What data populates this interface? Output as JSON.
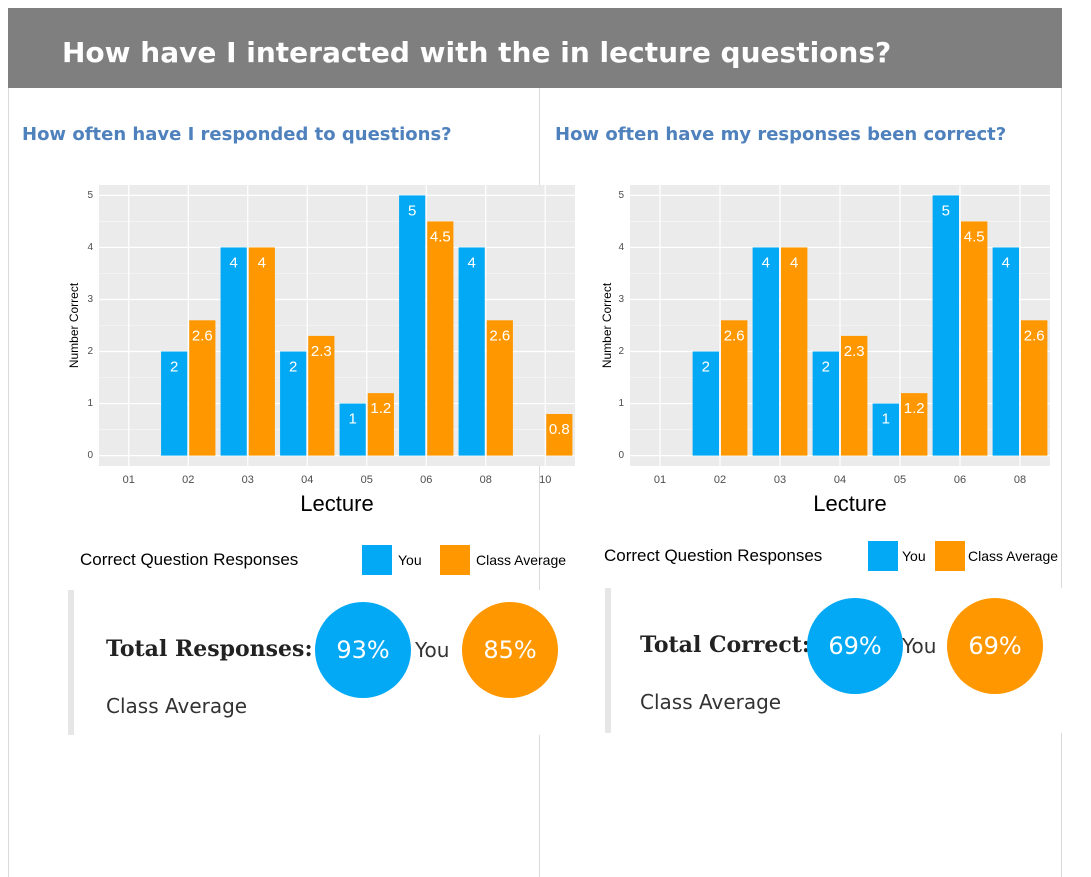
{
  "header": {
    "title": "How have I interacted with the in lecture questions?"
  },
  "panels": [
    {
      "heading": "How often have I responded to questions?",
      "summary": {
        "label": "Total Responses:",
        "you_value": "93%",
        "you_name": "You",
        "class_value": "85%",
        "class_name": "Class Average"
      }
    },
    {
      "heading": "How often have my responses been correct?",
      "summary": {
        "label": "Total Correct:",
        "you_value": "69%",
        "you_name": "You",
        "class_value": "69%",
        "class_name": "Class Average"
      }
    }
  ],
  "chart_data": [
    {
      "type": "bar",
      "xlabel": "Lecture",
      "ylabel": "Number Correct",
      "legend_title": "Correct Question Responses",
      "categories": [
        "01",
        "02",
        "03",
        "04",
        "05",
        "06",
        "08",
        "10"
      ],
      "series": [
        {
          "name": "You",
          "color": "#03a9f4",
          "values": [
            null,
            2,
            4,
            2,
            1,
            5,
            4,
            null
          ]
        },
        {
          "name": "Class Average",
          "color": "#ff9800",
          "values": [
            null,
            2.6,
            4,
            2.3,
            1.2,
            4.5,
            2.6,
            0.8
          ]
        }
      ],
      "ylim": [
        -0.2,
        5.2
      ],
      "yticks": [
        0,
        1,
        2,
        3,
        4,
        5
      ],
      "grid": true
    },
    {
      "type": "bar",
      "xlabel": "Lecture",
      "ylabel": "Number Correct",
      "legend_title": "Correct Question Responses",
      "categories": [
        "01",
        "02",
        "03",
        "04",
        "05",
        "06",
        "08"
      ],
      "series": [
        {
          "name": "You",
          "color": "#03a9f4",
          "values": [
            null,
            2,
            4,
            2,
            1,
            5,
            4
          ]
        },
        {
          "name": "Class Average",
          "color": "#ff9800",
          "values": [
            null,
            2.6,
            4,
            2.3,
            1.2,
            4.5,
            2.6
          ]
        }
      ],
      "ylim": [
        -0.2,
        5.2
      ],
      "yticks": [
        0,
        1,
        2,
        3,
        4,
        5
      ],
      "grid": true
    }
  ]
}
